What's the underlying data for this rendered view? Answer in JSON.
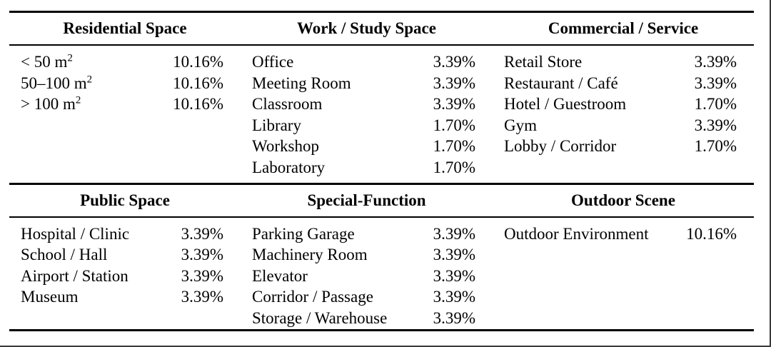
{
  "colors": {
    "background": "#ffffff",
    "text": "#000000",
    "table_rule": "#000000",
    "figure_frame": "#3a3a3a"
  },
  "table": {
    "type": "table",
    "sections": [
      {
        "groups": [
          {
            "header": "Residential Space",
            "rows": [
              {
                "label": "< 50 m",
                "sup": "2",
                "value": "10.16%"
              },
              {
                "label": "50–100 m",
                "sup": "2",
                "value": "10.16%"
              },
              {
                "label": "> 100 m",
                "sup": "2",
                "value": "10.16%"
              }
            ]
          },
          {
            "header": "Work / Study Space",
            "rows": [
              {
                "label": "Office",
                "value": "3.39%"
              },
              {
                "label": "Meeting Room",
                "value": "3.39%"
              },
              {
                "label": "Classroom",
                "value": "3.39%"
              },
              {
                "label": "Library",
                "value": "1.70%"
              },
              {
                "label": "Workshop",
                "value": "1.70%"
              },
              {
                "label": "Laboratory",
                "value": "1.70%"
              }
            ]
          },
          {
            "header": "Commercial / Service",
            "rows": [
              {
                "label": "Retail Store",
                "value": "3.39%"
              },
              {
                "label": "Restaurant / Café",
                "value": "3.39%"
              },
              {
                "label": "Hotel / Guestroom",
                "value": "1.70%"
              },
              {
                "label": "Gym",
                "value": "3.39%"
              },
              {
                "label": "Lobby / Corridor",
                "value": "1.70%"
              }
            ]
          }
        ]
      },
      {
        "groups": [
          {
            "header": "Public Space",
            "rows": [
              {
                "label": "Hospital / Clinic",
                "value": "3.39%"
              },
              {
                "label": "School / Hall",
                "value": "3.39%"
              },
              {
                "label": "Airport / Station",
                "value": "3.39%"
              },
              {
                "label": "Museum",
                "value": "3.39%"
              }
            ]
          },
          {
            "header": "Special-Function",
            "rows": [
              {
                "label": "Parking Garage",
                "value": "3.39%"
              },
              {
                "label": "Machinery Room",
                "value": "3.39%"
              },
              {
                "label": "Elevator",
                "value": "3.39%"
              },
              {
                "label": "Corridor / Passage",
                "value": "3.39%"
              },
              {
                "label": "Storage / Warehouse",
                "value": "3.39%"
              }
            ]
          },
          {
            "header": "Outdoor Scene",
            "rows": [
              {
                "label": "Outdoor Environment",
                "value": "10.16%"
              }
            ]
          }
        ]
      }
    ]
  }
}
